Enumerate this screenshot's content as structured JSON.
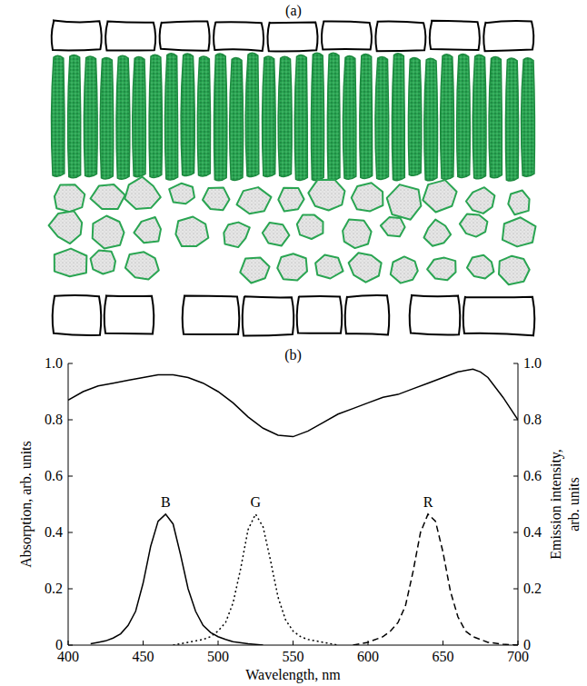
{
  "diagram": {
    "label": "(a)"
  },
  "chart_data": {
    "type": "line",
    "title": "(b)",
    "x_label": "Wavelength, nm",
    "y_label": "Absorption, arb. units",
    "y2_label": "Emission intensity, arb. units",
    "xlim": [
      400,
      700
    ],
    "xticks": [
      400,
      450,
      500,
      550,
      600,
      650,
      700
    ],
    "ylim": [
      0,
      1
    ],
    "yticks": [
      0,
      0.2,
      0.4,
      0.6,
      0.8,
      {
        "value": 1,
        "label": "1.0"
      }
    ],
    "y2lim": [
      0,
      1
    ],
    "y2ticks": [
      0,
      0.2,
      0.4,
      0.6,
      0.8,
      {
        "value": 1,
        "label": "1.0"
      }
    ],
    "series": [
      {
        "color": "#000000",
        "line_style": "solid",
        "axis": "y",
        "x": [
          400,
          410,
          420,
          430,
          440,
          450,
          460,
          470,
          480,
          490,
          500,
          510,
          520,
          530,
          540,
          550,
          560,
          570,
          580,
          590,
          600,
          610,
          620,
          630,
          640,
          650,
          660,
          670,
          675,
          680,
          690,
          700
        ],
        "values": [
          0.87,
          0.9,
          0.92,
          0.93,
          0.94,
          0.95,
          0.96,
          0.96,
          0.95,
          0.93,
          0.9,
          0.86,
          0.81,
          0.77,
          0.745,
          0.74,
          0.76,
          0.79,
          0.82,
          0.84,
          0.86,
          0.88,
          0.89,
          0.91,
          0.93,
          0.95,
          0.97,
          0.98,
          0.97,
          0.95,
          0.88,
          0.8
        ]
      },
      {
        "name": "B",
        "color": "#000000",
        "line_style": "solid",
        "axis": "y2",
        "x": [
          415,
          420,
          425,
          430,
          435,
          440,
          445,
          450,
          455,
          460,
          465,
          470,
          475,
          480,
          485,
          490,
          495,
          500,
          505,
          510,
          520,
          530
        ],
        "values": [
          0.005,
          0.01,
          0.015,
          0.025,
          0.04,
          0.07,
          0.12,
          0.22,
          0.35,
          0.44,
          0.465,
          0.43,
          0.32,
          0.2,
          0.12,
          0.07,
          0.045,
          0.03,
          0.02,
          0.012,
          0.005,
          0
        ]
      },
      {
        "name": "G",
        "color": "#000000",
        "line_style": "dotted",
        "axis": "y2",
        "x": [
          470,
          480,
          490,
          495,
          500,
          505,
          510,
          515,
          520,
          525,
          530,
          535,
          540,
          545,
          550,
          555,
          560,
          570,
          580
        ],
        "values": [
          0,
          0.01,
          0.02,
          0.03,
          0.05,
          0.08,
          0.15,
          0.27,
          0.41,
          0.465,
          0.42,
          0.3,
          0.17,
          0.09,
          0.05,
          0.03,
          0.02,
          0.01,
          0
        ]
      },
      {
        "name": "R",
        "color": "#000000",
        "line_style": "dashed",
        "axis": "y2",
        "x": [
          590,
          600,
          610,
          615,
          620,
          625,
          630,
          635,
          640,
          645,
          650,
          655,
          660,
          665,
          670,
          680,
          690,
          700
        ],
        "values": [
          0,
          0.01,
          0.03,
          0.05,
          0.08,
          0.14,
          0.26,
          0.4,
          0.465,
          0.44,
          0.33,
          0.19,
          0.1,
          0.05,
          0.03,
          0.01,
          0.003,
          0
        ]
      }
    ]
  }
}
